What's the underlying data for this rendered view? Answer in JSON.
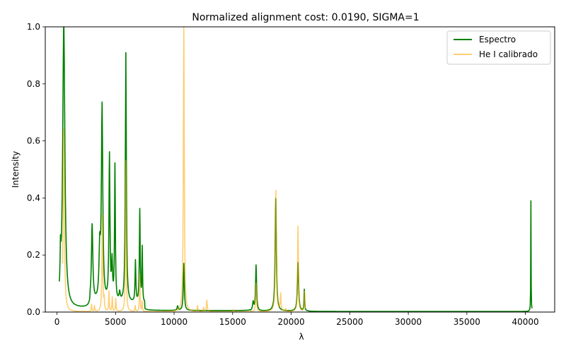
{
  "chart_data": {
    "type": "line",
    "title": "Normalized alignment cost: 0.0190, SIGMA=1",
    "xlabel": "λ",
    "ylabel": "Intensity",
    "xlim": [
      -1000,
      42500
    ],
    "ylim": [
      0,
      1.0
    ],
    "xticks": [
      0,
      5000,
      10000,
      15000,
      20000,
      25000,
      30000,
      35000,
      40000
    ],
    "yticks": [
      0.0,
      0.2,
      0.4,
      0.6,
      0.8,
      1.0
    ],
    "xtick_labels": [
      "0",
      "5000",
      "10000",
      "15000",
      "20000",
      "25000",
      "30000",
      "35000",
      "40000"
    ],
    "ytick_labels": [
      "0.0",
      "0.2",
      "0.4",
      "0.6",
      "0.8",
      "1.0"
    ],
    "grid": false,
    "legend_position": "top-right",
    "series": [
      {
        "name": "Espectro",
        "color": "#008000",
        "opacity": 1,
        "baseline_segments": [
          {
            "from": 0,
            "to": 2800,
            "value": 0.012
          },
          {
            "from": 2800,
            "to": 7500,
            "value": 0.03
          },
          {
            "from": 7500,
            "to": 16500,
            "value": 0.005
          },
          {
            "from": 16500,
            "to": 21500,
            "value": 0.003
          },
          {
            "from": 21500,
            "to": 40600,
            "value": 0.002
          }
        ],
        "peaks": [
          {
            "x": 300,
            "y": 0.125,
            "w": 40
          },
          {
            "x": 580,
            "y": 1.0,
            "w": 110
          },
          {
            "x": 3000,
            "y": 0.27,
            "w": 70
          },
          {
            "x": 3650,
            "y": 0.17,
            "w": 70
          },
          {
            "x": 3850,
            "y": 0.68,
            "w": 70
          },
          {
            "x": 4480,
            "y": 0.51,
            "w": 50
          },
          {
            "x": 4700,
            "y": 0.13,
            "w": 50
          },
          {
            "x": 4950,
            "y": 0.475,
            "w": 40
          },
          {
            "x": 5350,
            "y": 0.03,
            "w": 60
          },
          {
            "x": 5880,
            "y": 0.875,
            "w": 50
          },
          {
            "x": 6700,
            "y": 0.145,
            "w": 40
          },
          {
            "x": 7070,
            "y": 0.325,
            "w": 40
          },
          {
            "x": 7280,
            "y": 0.19,
            "w": 30
          },
          {
            "x": 10300,
            "y": 0.015,
            "w": 50
          },
          {
            "x": 10830,
            "y": 0.165,
            "w": 50
          },
          {
            "x": 16750,
            "y": 0.03,
            "w": 60
          },
          {
            "x": 17000,
            "y": 0.16,
            "w": 50
          },
          {
            "x": 18680,
            "y": 0.395,
            "w": 60
          },
          {
            "x": 20580,
            "y": 0.17,
            "w": 60
          },
          {
            "x": 21120,
            "y": 0.075,
            "w": 30
          },
          {
            "x": 40470,
            "y": 0.388,
            "w": 15
          }
        ]
      },
      {
        "name": "He I calibrado",
        "color": "#FFA500",
        "opacity": 0.55,
        "baseline_segments": [
          {
            "from": 0,
            "to": 40600,
            "value": 0.001
          }
        ],
        "peaks": [
          {
            "x": 580,
            "y": 0.64,
            "w": 60
          },
          {
            "x": 2950,
            "y": 0.025,
            "w": 30
          },
          {
            "x": 3200,
            "y": 0.02,
            "w": 30
          },
          {
            "x": 3870,
            "y": 0.34,
            "w": 40
          },
          {
            "x": 4030,
            "y": 0.04,
            "w": 30
          },
          {
            "x": 4440,
            "y": 0.07,
            "w": 30
          },
          {
            "x": 4720,
            "y": 0.05,
            "w": 30
          },
          {
            "x": 5020,
            "y": 0.045,
            "w": 30
          },
          {
            "x": 5880,
            "y": 0.53,
            "w": 35
          },
          {
            "x": 6680,
            "y": 0.02,
            "w": 30
          },
          {
            "x": 7070,
            "y": 0.13,
            "w": 30
          },
          {
            "x": 7280,
            "y": 0.035,
            "w": 25
          },
          {
            "x": 10830,
            "y": 1.0,
            "w": 45
          },
          {
            "x": 12000,
            "y": 0.02,
            "w": 30
          },
          {
            "x": 12530,
            "y": 0.015,
            "w": 30
          },
          {
            "x": 12800,
            "y": 0.04,
            "w": 40
          },
          {
            "x": 15080,
            "y": 0.008,
            "w": 30
          },
          {
            "x": 17000,
            "y": 0.1,
            "w": 40
          },
          {
            "x": 18690,
            "y": 0.425,
            "w": 50
          },
          {
            "x": 19100,
            "y": 0.06,
            "w": 40
          },
          {
            "x": 19540,
            "y": 0.01,
            "w": 30
          },
          {
            "x": 20580,
            "y": 0.3,
            "w": 40
          },
          {
            "x": 21130,
            "y": 0.07,
            "w": 30
          }
        ]
      }
    ]
  }
}
